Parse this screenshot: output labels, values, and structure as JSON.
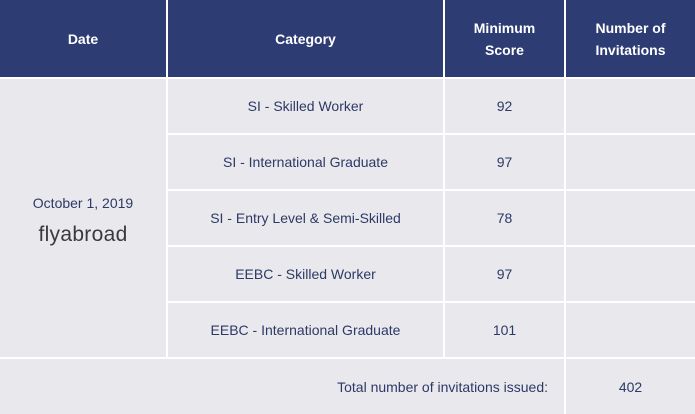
{
  "table": {
    "headers": {
      "date": "Date",
      "category": "Category",
      "min_score_line1": "Minimum",
      "min_score_line2": "Score",
      "invitations_line1": "Number of",
      "invitations_line2": "Invitations"
    },
    "date": "October 1, 2019",
    "watermark": "flyabroad",
    "rows": [
      {
        "category": "SI - Skilled Worker",
        "min_score": "92",
        "invitations": ""
      },
      {
        "category": "SI - International Graduate",
        "min_score": "97",
        "invitations": ""
      },
      {
        "category": "SI - Entry Level & Semi-Skilled",
        "min_score": "78",
        "invitations": ""
      },
      {
        "category": "EEBC - Skilled Worker",
        "min_score": "97",
        "invitations": ""
      },
      {
        "category": "EEBC - International Graduate",
        "min_score": "101",
        "invitations": ""
      }
    ],
    "total_label": "Total number of invitations issued:",
    "total_value": "402"
  },
  "colors": {
    "header_bg": "#2d3d73",
    "cell_bg": "#e9e9ed",
    "text": "#2d3966"
  }
}
